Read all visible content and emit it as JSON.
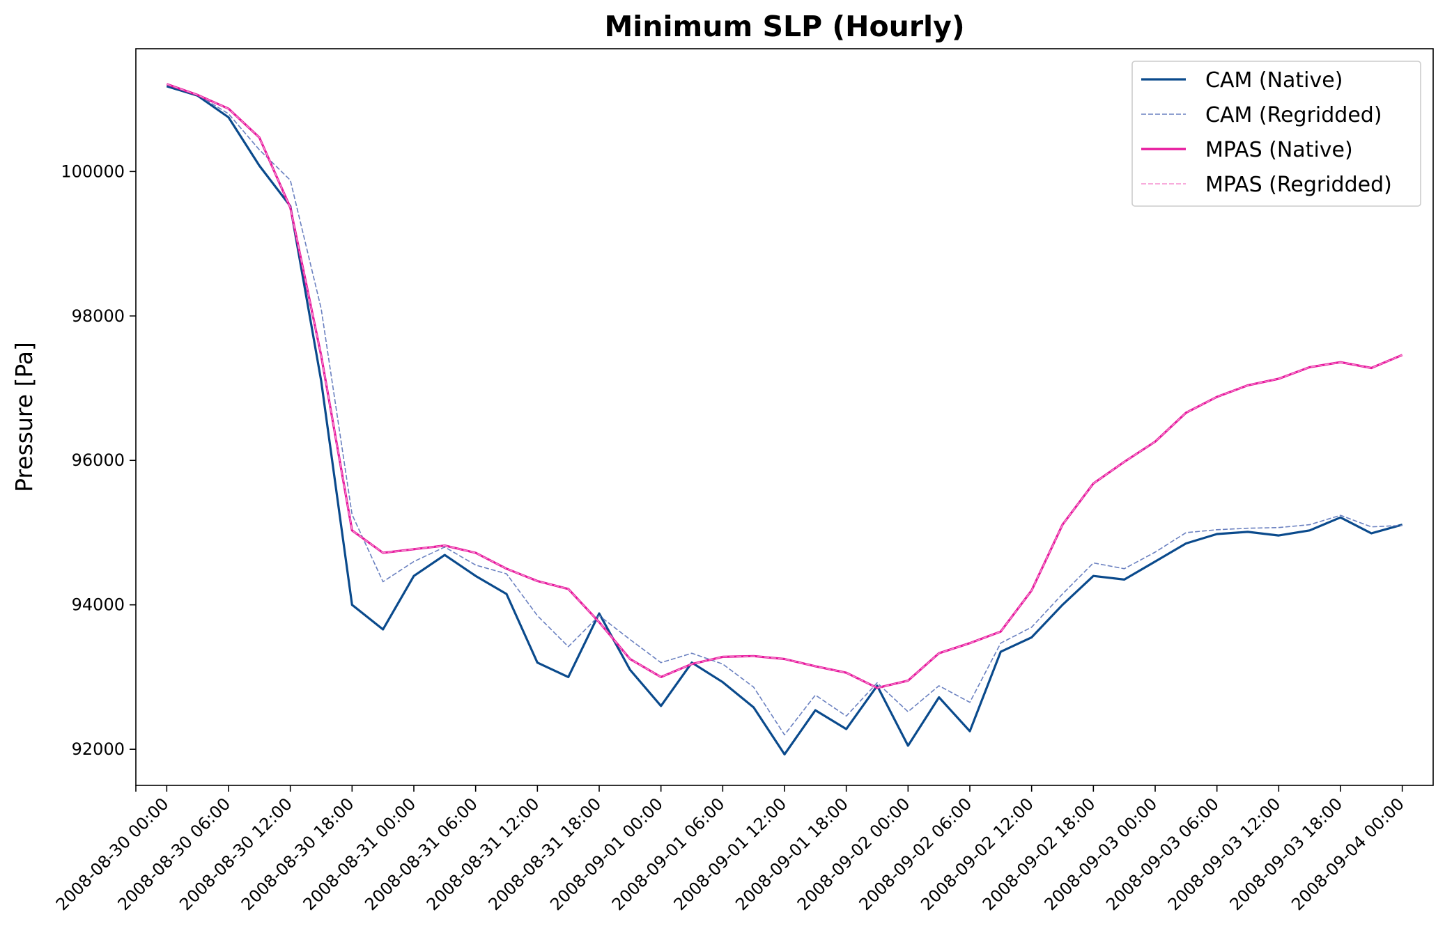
{
  "chart_data": {
    "type": "line",
    "title": "Minimum SLP (Hourly)",
    "xlabel": "",
    "ylabel": "Pressure [Pa]",
    "x_start": "2008-08-30 00:00",
    "x_step_hours": 3,
    "x_range": [
      "2008-08-29 21:00",
      "2008-09-04 03:00"
    ],
    "ylim": [
      91500,
      101700
    ],
    "grid": false,
    "legend_position": "top-right",
    "x_tick_labels": [
      "2008-08-30 00:00",
      "2008-08-30 06:00",
      "2008-08-30 12:00",
      "2008-08-30 18:00",
      "2008-08-31 00:00",
      "2008-08-31 06:00",
      "2008-08-31 12:00",
      "2008-08-31 18:00",
      "2008-09-01 00:00",
      "2008-09-01 06:00",
      "2008-09-01 12:00",
      "2008-09-01 18:00",
      "2008-09-02 00:00",
      "2008-09-02 06:00",
      "2008-09-02 12:00",
      "2008-09-02 18:00",
      "2008-09-03 00:00",
      "2008-09-03 06:00",
      "2008-09-03 12:00",
      "2008-09-03 18:00",
      "2008-09-04 00:00"
    ],
    "y_ticks": [
      92000,
      94000,
      96000,
      98000,
      100000
    ],
    "series": [
      {
        "name": "CAM (Native)",
        "color": "#0a4a8c",
        "style": "solid",
        "values": [
          101180,
          101050,
          100750,
          100080,
          99520,
          97100,
          94000,
          93660,
          94400,
          94690,
          94400,
          94150,
          93200,
          93000,
          93880,
          93100,
          92600,
          93200,
          92930,
          92580,
          91930,
          92540,
          92280,
          92880,
          92050,
          92720,
          92250,
          93350,
          93550,
          94000,
          94400,
          94350,
          94600,
          94850,
          94980,
          95010,
          94960,
          95030,
          95210,
          94990,
          95110
        ]
      },
      {
        "name": "CAM (Regridded)",
        "color": "#6a80c0",
        "style": "dashed",
        "values": [
          101200,
          101060,
          100800,
          100300,
          99880,
          98100,
          95250,
          94320,
          94600,
          94800,
          94550,
          94430,
          93850,
          93420,
          93850,
          93520,
          93200,
          93330,
          93180,
          92860,
          92200,
          92750,
          92460,
          92920,
          92520,
          92880,
          92650,
          93470,
          93690,
          94150,
          94580,
          94500,
          94730,
          95000,
          95040,
          95060,
          95070,
          95110,
          95240,
          95080,
          95100
        ]
      },
      {
        "name": "MPAS (Native)",
        "color": "#e6149b",
        "style": "solid",
        "values": [
          101210,
          101060,
          100870,
          100470,
          99500,
          97450,
          95030,
          94720,
          94770,
          94820,
          94720,
          94500,
          94330,
          94220,
          93760,
          93250,
          93000,
          93180,
          93280,
          93290,
          93250,
          93150,
          93060,
          92850,
          92950,
          93330,
          93470,
          93630,
          94200,
          95110,
          95680,
          95980,
          96260,
          96660,
          96880,
          97040,
          97130,
          97290,
          97360,
          97280,
          97460
        ]
      },
      {
        "name": "MPAS (Regridded)",
        "color": "#f58fcf",
        "style": "dashed",
        "values": [
          101210,
          101060,
          100870,
          100470,
          99500,
          97450,
          95030,
          94720,
          94770,
          94820,
          94720,
          94500,
          94330,
          94220,
          93760,
          93250,
          93000,
          93180,
          93280,
          93290,
          93250,
          93150,
          93060,
          92850,
          92950,
          93330,
          93470,
          93630,
          94200,
          95110,
          95680,
          95980,
          96260,
          96660,
          96880,
          97040,
          97130,
          97290,
          97360,
          97280,
          97460
        ]
      }
    ]
  }
}
